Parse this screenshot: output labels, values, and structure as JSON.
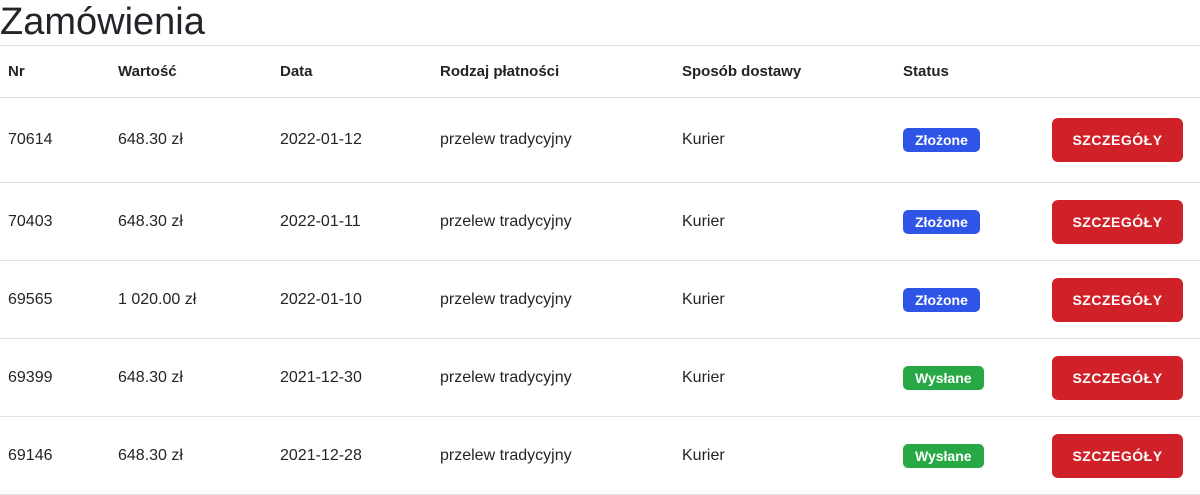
{
  "page": {
    "title": "Zamówienia"
  },
  "colors": {
    "status_submitted": "#2f55e8",
    "status_shipped": "#28a745",
    "button_red": "#d02129",
    "divider": "#dee2e6",
    "text": "#212529"
  },
  "table": {
    "headers": {
      "nr": "Nr",
      "wartosc": "Wartość",
      "data": "Data",
      "platnosc": "Rodzaj płatności",
      "dostawa": "Sposób dostawy",
      "status": "Status",
      "action": ""
    },
    "details_button_label": "SZCZEGÓŁY",
    "rows": [
      {
        "nr": "70614",
        "wartosc": "648.30 zł",
        "data": "2022-01-12",
        "platnosc": "przelew tradycyjny",
        "dostawa": "Kurier",
        "status_label": "Złożone",
        "status_type": "submitted"
      },
      {
        "nr": "70403",
        "wartosc": "648.30 zł",
        "data": "2022-01-11",
        "platnosc": "przelew tradycyjny",
        "dostawa": "Kurier",
        "status_label": "Złożone",
        "status_type": "submitted"
      },
      {
        "nr": "69565",
        "wartosc": "1 020.00 zł",
        "data": "2022-01-10",
        "platnosc": "przelew tradycyjny",
        "dostawa": "Kurier",
        "status_label": "Złożone",
        "status_type": "submitted"
      },
      {
        "nr": "69399",
        "wartosc": "648.30 zł",
        "data": "2021-12-30",
        "platnosc": "przelew tradycyjny",
        "dostawa": "Kurier",
        "status_label": "Wysłane",
        "status_type": "shipped"
      },
      {
        "nr": "69146",
        "wartosc": "648.30 zł",
        "data": "2021-12-28",
        "platnosc": "przelew tradycyjny",
        "dostawa": "Kurier",
        "status_label": "Wysłane",
        "status_type": "shipped"
      }
    ]
  }
}
